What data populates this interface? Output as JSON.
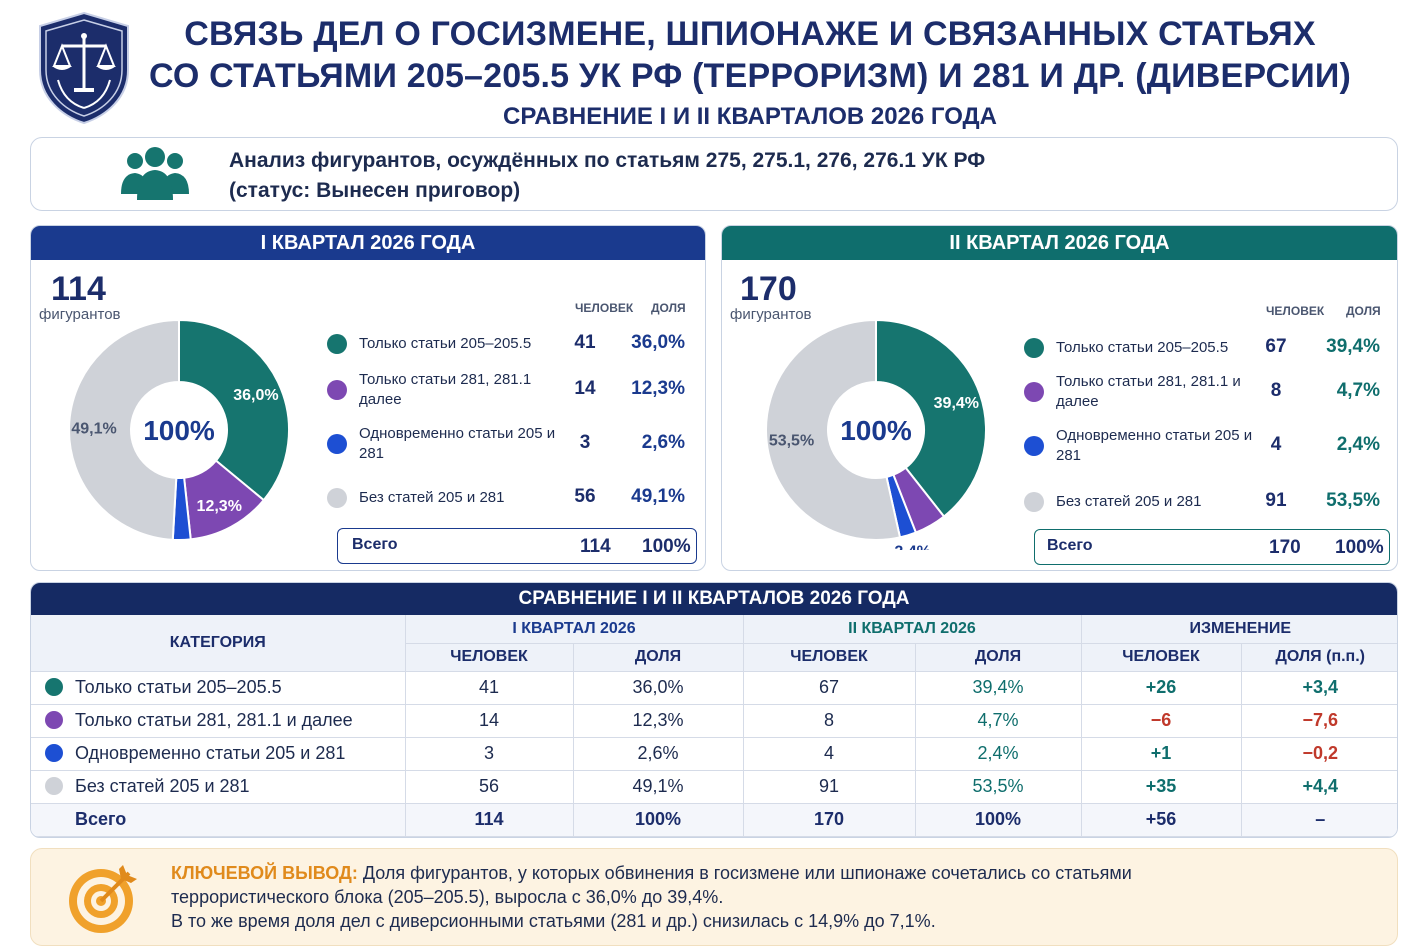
{
  "header": {
    "title_line1": "СВЯЗЬ ДЕЛ О ГОСИЗМЕНЕ, ШПИОНАЖЕ И СВЯЗАННЫХ СТАТЬЯХ",
    "title_line2": "СО СТАТЬЯМИ 205–205.5 УК РФ (ТЕРРОРИЗМ) И 281 И ДР. (ДИВЕРСИИ)",
    "subtitle": "СРАВНЕНИЕ I И II КВАРТАЛОВ 2026 ГОДА",
    "emblem_icon": "scales-shield-icon"
  },
  "analysis": {
    "icon": "people-group-icon",
    "line1": "Анализ фигурантов, осуждённых по статьям 275, 275.1, 276, 276.1 УК РФ",
    "line2": "(статус: Вынесен приговор)"
  },
  "colors": {
    "teal": "#16756f",
    "purple": "#7d48b2",
    "blue": "#1d4fd3",
    "gray": "#cfd2d8",
    "navy": "#1a3a8e",
    "dark_teal": "#0f6e6d",
    "orange": "#e08a1c",
    "negative": "#c0392b"
  },
  "legend_headers": {
    "people": "ЧЕЛОВЕК",
    "share": "ДОЛЯ"
  },
  "chart_data": [
    {
      "type": "pie",
      "title": "I КВАРТАЛ 2026 ГОДА",
      "center_label": "100%",
      "total": 114,
      "total_caption": "фигурантов",
      "categories": [
        "Только статьи 205–205.5",
        "Только статьи 281, 281.1 далее",
        "Одновременно статьи 205 и 281",
        "Без статей 205 и 281"
      ],
      "counts": [
        41,
        14,
        3,
        56
      ],
      "values": [
        36.0,
        12.3,
        2.6,
        49.1
      ],
      "value_labels": [
        "36,0%",
        "12,3%",
        "2,6%",
        "49,1%"
      ],
      "count_labels": [
        "41",
        "14",
        "3",
        "56"
      ],
      "total_row": {
        "label": "Всего",
        "count": "114",
        "share": "100%"
      }
    },
    {
      "type": "pie",
      "title": "II КВАРТАЛ 2026 ГОДА",
      "center_label": "100%",
      "total": 170,
      "total_caption": "фигурантов",
      "categories": [
        "Только статьи 205–205.5",
        "Только статьи 281, 281.1 и далее",
        "Одновременно статьи 205 и 281",
        "Без статей 205 и 281"
      ],
      "counts": [
        67,
        8,
        4,
        91
      ],
      "values": [
        39.4,
        4.7,
        2.4,
        53.5
      ],
      "value_labels": [
        "39,4%",
        "4,7%",
        "2,4%",
        "53,5%"
      ],
      "count_labels": [
        "67",
        "8",
        "4",
        "91"
      ],
      "total_row": {
        "label": "Всего",
        "count": "170",
        "share": "100%"
      }
    }
  ],
  "comparison": {
    "title": "СРАВНЕНИЕ I И II КВАРТАЛОВ 2026 ГОДА",
    "col_category": "КАТЕГОРИЯ",
    "group_q1": "I КВАРТАЛ 2026",
    "group_q2": "II КВАРТАЛ 2026",
    "group_change": "ИЗМЕНЕНИЕ",
    "sub_people": "ЧЕЛОВЕК",
    "sub_share": "ДОЛЯ",
    "sub_share_pp": "ДОЛЯ (п.п.)",
    "rows": [
      {
        "category": "Только статьи 205–205.5",
        "q1_n": "41",
        "q1_s": "36,0%",
        "q2_n": "67",
        "q2_s": "39,4%",
        "d_n": "+26",
        "d_s": "+3,4"
      },
      {
        "category": "Только статьи 281, 281.1 и далее",
        "q1_n": "14",
        "q1_s": "12,3%",
        "q2_n": "8",
        "q2_s": "4,7%",
        "d_n": "−6",
        "d_s": "−7,6"
      },
      {
        "category": "Одновременно статьи 205 и 281",
        "q1_n": "3",
        "q1_s": "2,6%",
        "q2_n": "4",
        "q2_s": "2,4%",
        "d_n": "+1",
        "d_s": "−0,2"
      },
      {
        "category": "Без статей 205 и 281",
        "q1_n": "56",
        "q1_s": "49,1%",
        "q2_n": "91",
        "q2_s": "53,5%",
        "d_n": "+35",
        "d_s": "+4,4"
      }
    ],
    "total": {
      "category": "Всего",
      "q1_n": "114",
      "q1_s": "100%",
      "q2_n": "170",
      "q2_s": "100%",
      "d_n": "+56",
      "d_s": "–"
    }
  },
  "conclusion": {
    "icon": "target-icon",
    "key": "КЛЮЧЕВОЙ ВЫВОД:",
    "text1": " Доля фигурантов, у которых обвинения в госизмене или шпионаже сочетались со статьями",
    "text2": "террористического блока (205–205.5), выросла с 36,0% до 39,4%.",
    "text3": "В то же время доля дел с диверсионными статьями (281 и др.) снизилась с 14,9% до 7,1%."
  }
}
